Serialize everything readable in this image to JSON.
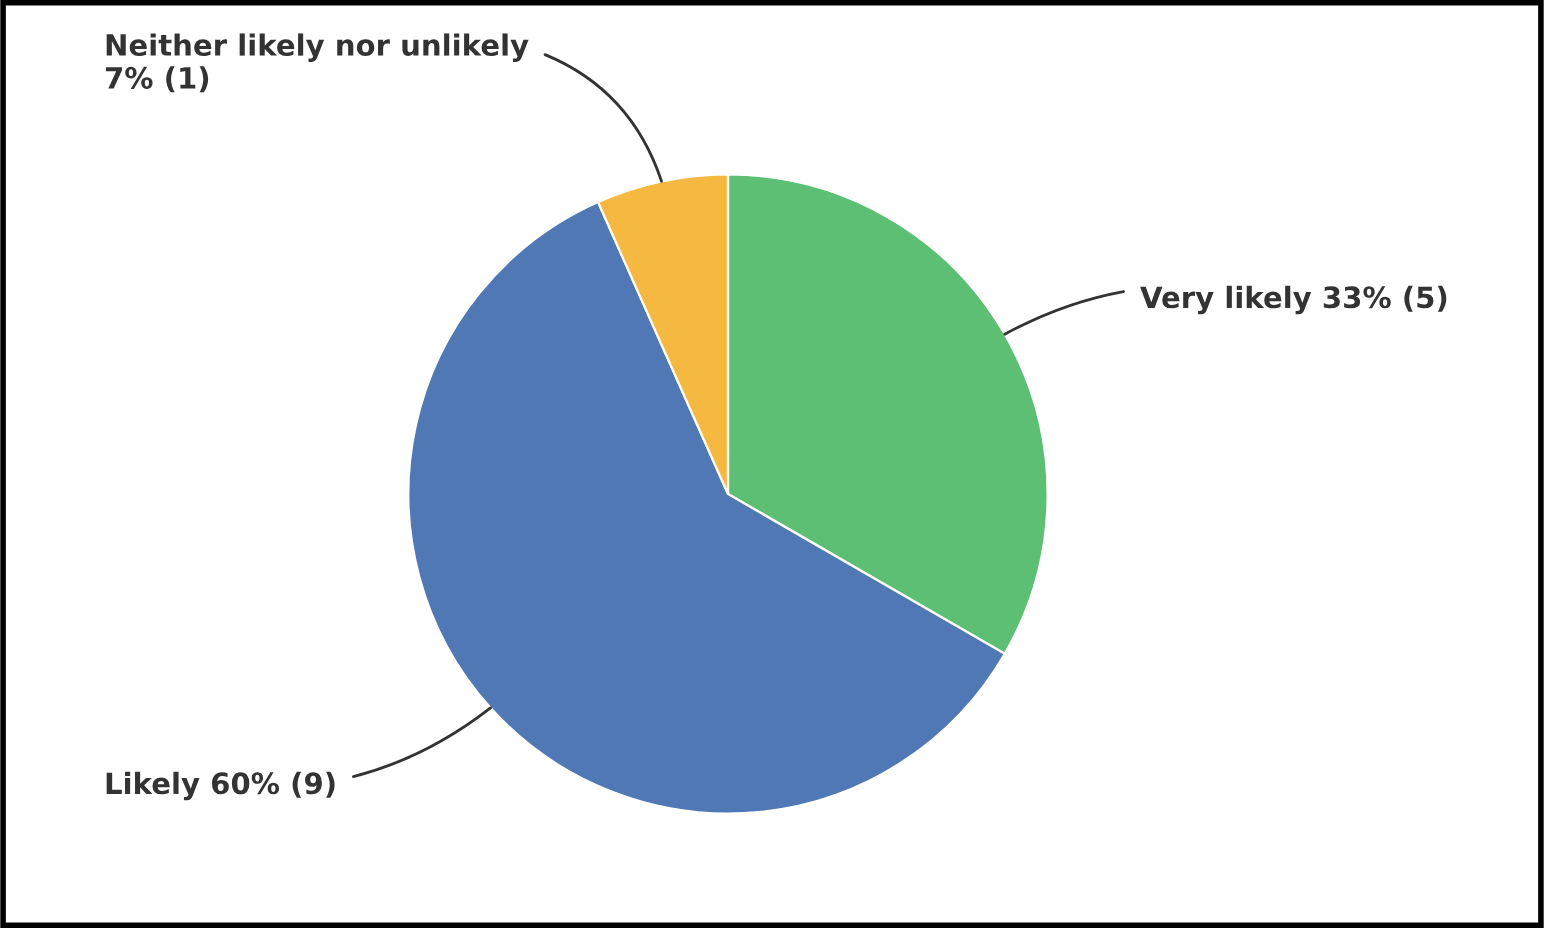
{
  "chart_data": {
    "type": "pie",
    "categories": [
      "Very likely",
      "Likely",
      "Neither likely nor unlikely"
    ],
    "values": [
      5,
      9,
      1
    ],
    "value_labels": [
      "33% (5)",
      "60% (9)",
      "7% (1)"
    ],
    "colors": [
      "#5cbf73",
      "#4f78b5",
      "#f5b942"
    ]
  }
}
